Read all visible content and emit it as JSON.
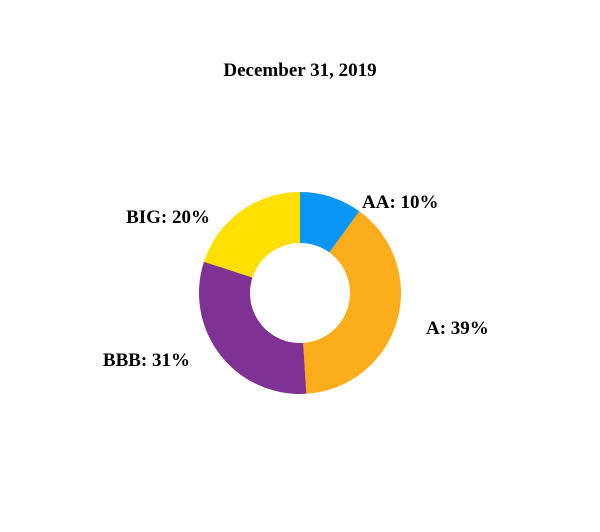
{
  "chart_data": {
    "type": "pie",
    "title": "December 31, 2019",
    "donut": true,
    "slices": [
      {
        "label": "AA",
        "value": 10,
        "display": "AA: 10%",
        "color": "#0a96f5"
      },
      {
        "label": "A",
        "value": 39,
        "display": "A: 39%",
        "color": "#fbad1c"
      },
      {
        "label": "BBB",
        "value": 31,
        "display": "BBB: 31%",
        "color": "#7f3194"
      },
      {
        "label": "BIG",
        "value": 20,
        "display": "BIG: 20%",
        "color": "#fddf00"
      }
    ]
  }
}
